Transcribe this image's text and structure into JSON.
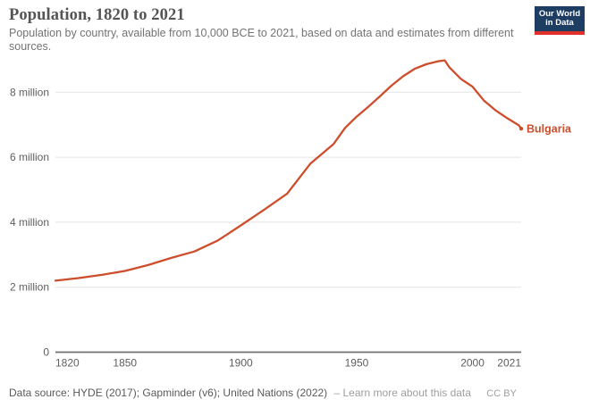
{
  "header": {
    "title": "Population, 1820 to 2021",
    "subtitle": "Population by country, available from 10,000 BCE to 2021, based on data and estimates from different sources."
  },
  "logo": {
    "line1": "Our World",
    "line2": "in Data"
  },
  "chart_data": {
    "type": "line",
    "title": "Population, 1820 to 2021",
    "xlabel": "",
    "ylabel": "",
    "unit": "people",
    "grid": true,
    "legend_position": "end-of-line-label",
    "xlim": [
      1820,
      2021
    ],
    "ylim": [
      0,
      9.2
    ],
    "x_ticks": [
      {
        "year": 1820,
        "label": "1820",
        "align": "start"
      },
      {
        "year": 1850,
        "label": "1850",
        "align": "middle"
      },
      {
        "year": 1900,
        "label": "1900",
        "align": "middle"
      },
      {
        "year": 1950,
        "label": "1950",
        "align": "middle"
      },
      {
        "year": 2000,
        "label": "2000",
        "align": "middle"
      },
      {
        "year": 2021,
        "label": "2021",
        "align": "end"
      }
    ],
    "y_ticks": [
      {
        "value": 0,
        "label": "0"
      },
      {
        "value": 2,
        "label": "2 million"
      },
      {
        "value": 4,
        "label": "4 million"
      },
      {
        "value": 6,
        "label": "6 million"
      },
      {
        "value": 8,
        "label": "8 million"
      }
    ],
    "series": [
      {
        "name": "Bulgaria",
        "color": "#cc4e2c",
        "points_year_millions": [
          [
            1820,
            2.2
          ],
          [
            1830,
            2.28
          ],
          [
            1840,
            2.38
          ],
          [
            1850,
            2.5
          ],
          [
            1860,
            2.68
          ],
          [
            1870,
            2.9
          ],
          [
            1880,
            3.1
          ],
          [
            1890,
            3.43
          ],
          [
            1900,
            3.9
          ],
          [
            1910,
            4.38
          ],
          [
            1920,
            4.88
          ],
          [
            1930,
            5.8
          ],
          [
            1940,
            6.4
          ],
          [
            1945,
            6.9
          ],
          [
            1950,
            7.25
          ],
          [
            1955,
            7.55
          ],
          [
            1960,
            7.87
          ],
          [
            1965,
            8.2
          ],
          [
            1970,
            8.49
          ],
          [
            1975,
            8.72
          ],
          [
            1980,
            8.86
          ],
          [
            1985,
            8.95
          ],
          [
            1988,
            8.98
          ],
          [
            1990,
            8.77
          ],
          [
            1995,
            8.41
          ],
          [
            2000,
            8.17
          ],
          [
            2005,
            7.74
          ],
          [
            2010,
            7.44
          ],
          [
            2015,
            7.2
          ],
          [
            2020,
            6.98
          ],
          [
            2021,
            6.88
          ]
        ]
      }
    ]
  },
  "footer": {
    "source": "Data source: HYDE (2017); Gapminder (v6); United Nations (2022)",
    "learn_more": "– Learn more about this data",
    "license": "CC BY"
  }
}
